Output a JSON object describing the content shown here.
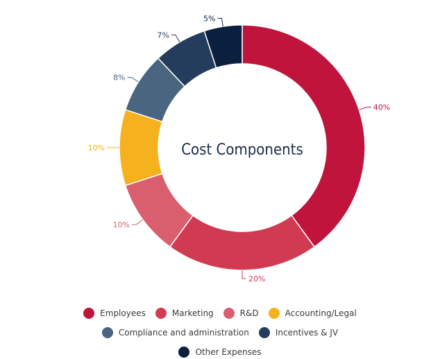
{
  "chart_data": {
    "type": "pie",
    "variant": "donut",
    "center_label": "Cost Components",
    "categories": [
      "Employees",
      "Marketing",
      "R&D",
      "Accounting/Legal",
      "Compliance and administration",
      "Incentives & JV",
      "Other Expenses"
    ],
    "values": [
      40,
      20,
      10,
      10,
      8,
      7,
      5
    ],
    "data_labels": [
      "40%",
      "20%",
      "10%",
      "10%",
      "8%",
      "7%",
      "5%"
    ],
    "colors": [
      "#c0143c",
      "#d13b52",
      "#d95f6e",
      "#f5b11e",
      "#4a6580",
      "#253d5c",
      "#0b1f3f"
    ],
    "legend_position": "bottom"
  }
}
